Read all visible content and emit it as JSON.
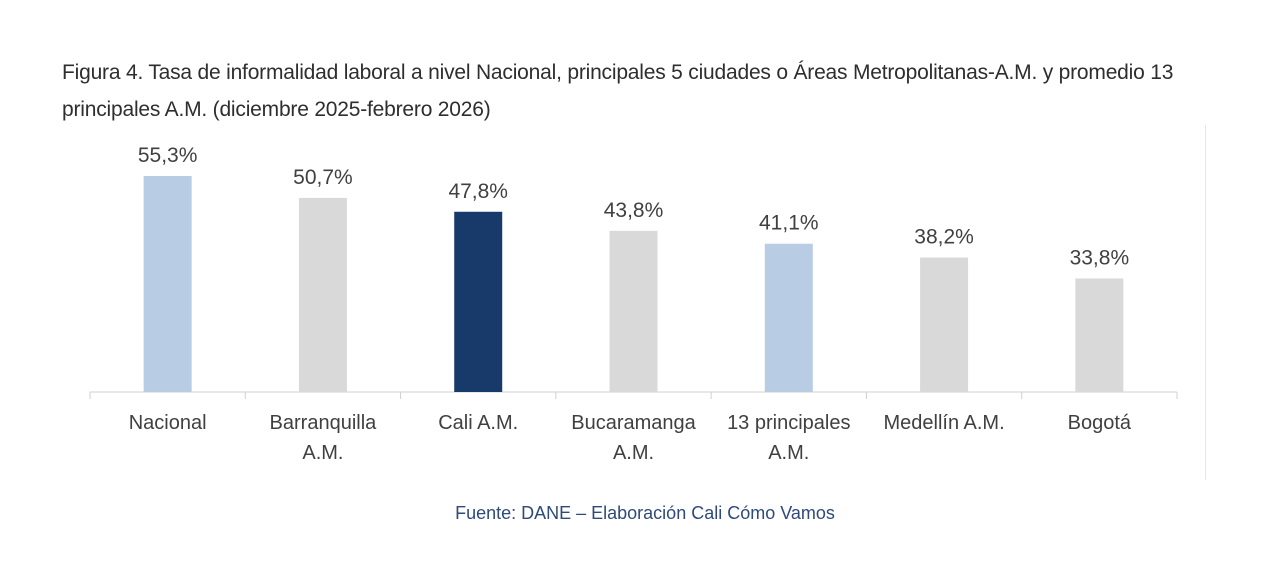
{
  "chart_data": {
    "type": "bar",
    "title": "Figura 4. Tasa de informalidad laboral a nivel Nacional, principales 5 ciudades o Áreas Metropolitanas-A.M. y promedio 13 principales A.M. (diciembre 2025-febrero 2026)",
    "categories": [
      [
        "Nacional"
      ],
      [
        "Barranquilla",
        "A.M."
      ],
      [
        "Cali A.M."
      ],
      [
        "Bucaramanga",
        "A.M."
      ],
      [
        "13 principales",
        "A.M."
      ],
      [
        "Medellín A.M."
      ],
      [
        "Bogotá"
      ]
    ],
    "values": [
      55.3,
      50.7,
      47.8,
      43.8,
      41.1,
      38.2,
      33.8
    ],
    "data_labels": [
      "55,3%",
      "50,7%",
      "47,8%",
      "43,8%",
      "41,1%",
      "38,2%",
      "33,8%"
    ],
    "colors": [
      "#b8cce4",
      "#d9d9d9",
      "#173a6b",
      "#d9d9d9",
      "#b8cce4",
      "#d9d9d9",
      "#d9d9d9"
    ],
    "xlabel": "",
    "ylabel": "",
    "ylim": [
      10,
      60
    ],
    "grid": false,
    "source": "Fuente: DANE – Elaboración Cali Cómo Vamos"
  }
}
